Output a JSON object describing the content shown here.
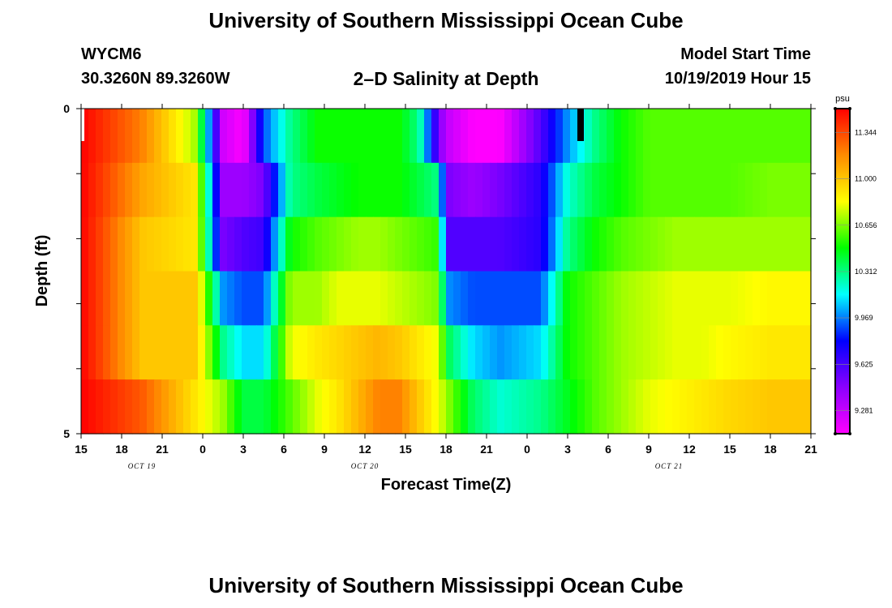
{
  "header": {
    "title": "University of Southern Mississippi Ocean Cube",
    "station": "WYCM6",
    "coords": "30.3260N 89.3260W",
    "subtitle": "2–D Salinity at Depth",
    "model_start_label": "Model Start Time",
    "model_start_value": "10/19/2019 Hour 15"
  },
  "footer": {
    "title": "University of Southern Mississippi Ocean Cube"
  },
  "chart_data": {
    "type": "heatmap",
    "title": "2–D Salinity at Depth",
    "xlabel": "Forecast Time(Z)",
    "ylabel": "Depth (ft)",
    "x_tick_labels": [
      "15",
      "18",
      "21",
      "0",
      "3",
      "6",
      "9",
      "12",
      "15",
      "18",
      "21",
      "0",
      "3",
      "6",
      "9",
      "12",
      "15",
      "18",
      "21"
    ],
    "date_labels": [
      {
        "label": "OCT 19",
        "at_tick": 1.5
      },
      {
        "label": "OCT 20",
        "at_tick": 7
      },
      {
        "label": "OCT 21",
        "at_tick": 14.5
      }
    ],
    "y_tick_labels": [
      {
        "value": 0,
        "label": "0"
      },
      {
        "value": 1,
        "label": ""
      },
      {
        "value": 2,
        "label": ""
      },
      {
        "value": 3,
        "label": ""
      },
      {
        "value": 4,
        "label": ""
      },
      {
        "value": 5,
        "label": "5"
      }
    ],
    "ylim": [
      0,
      5
    ],
    "xlim_hours": [
      0,
      54
    ],
    "colorbar": {
      "unit": "psu",
      "range": [
        9.11,
        11.52
      ],
      "tick_values": [
        9.281,
        9.625,
        9.969,
        10.312,
        10.656,
        11.0,
        11.344
      ],
      "tick_labels": [
        "9.281",
        "9.625",
        "9.969",
        "10.312",
        "10.656",
        "11.000",
        "11.344"
      ],
      "colors_low_to_high": [
        "#ff00ff",
        "#8b00ff",
        "#0000ff",
        "#00ffff",
        "#00ff00",
        "#ffff00",
        "#ff8c00",
        "#ff0000"
      ]
    },
    "grid": {
      "x_hours": [
        0,
        4.5,
        8.5,
        10.5,
        12,
        13.5,
        15.5,
        17.5,
        19,
        20.5,
        22,
        23.5,
        25,
        26.5,
        27,
        29,
        31,
        34,
        36,
        38,
        40,
        42,
        44,
        46,
        48,
        51,
        54
      ],
      "rows": [
        [
          11.52,
          11.2,
          10.7,
          9.25,
          9.11,
          9.9,
          10.3,
          10.5,
          10.5,
          10.5,
          10.5,
          10.5,
          10.3,
          9.5,
          9.3,
          9.11,
          9.11,
          9.6,
          10.0,
          10.3,
          10.5,
          10.6,
          10.6,
          10.6,
          10.6,
          10.6
        ],
        [
          11.52,
          11.1,
          10.9,
          9.4,
          9.4,
          9.5,
          10.3,
          10.4,
          10.45,
          10.5,
          10.5,
          10.5,
          10.4,
          10.3,
          9.5,
          9.4,
          9.5,
          9.7,
          10.2,
          10.4,
          10.5,
          10.6,
          10.6,
          10.6,
          10.6,
          10.65
        ],
        [
          11.52,
          11.0,
          10.9,
          9.5,
          9.6,
          9.65,
          10.5,
          10.6,
          10.65,
          10.7,
          10.7,
          10.65,
          10.6,
          10.55,
          9.6,
          9.6,
          9.6,
          9.7,
          10.3,
          10.5,
          10.6,
          10.65,
          10.7,
          10.7,
          10.7,
          10.7
        ],
        [
          11.52,
          11.0,
          11.0,
          10.0,
          9.9,
          9.9,
          10.7,
          10.7,
          10.8,
          10.8,
          10.8,
          10.75,
          10.7,
          10.65,
          10.0,
          9.9,
          9.9,
          9.9,
          10.5,
          10.6,
          10.7,
          10.75,
          10.8,
          10.8,
          10.8,
          10.85
        ],
        [
          11.52,
          11.0,
          11.0,
          10.3,
          10.1,
          10.1,
          10.8,
          10.9,
          10.95,
          11.0,
          11.05,
          11.0,
          10.9,
          10.8,
          10.4,
          10.1,
          10.0,
          10.1,
          10.5,
          10.6,
          10.7,
          10.75,
          10.8,
          10.8,
          10.85,
          10.9
        ],
        [
          11.52,
          11.3,
          10.9,
          10.7,
          10.4,
          10.4,
          10.6,
          10.8,
          10.9,
          11.05,
          11.2,
          11.2,
          11.0,
          10.8,
          10.7,
          10.35,
          10.2,
          10.3,
          10.45,
          10.6,
          10.7,
          10.8,
          10.85,
          10.9,
          10.95,
          11.0
        ]
      ]
    }
  }
}
